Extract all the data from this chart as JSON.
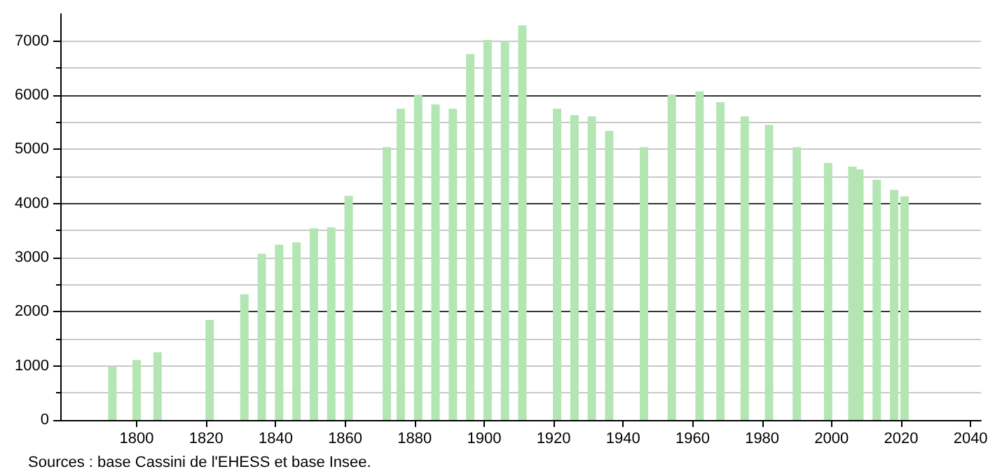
{
  "chart_data": {
    "type": "bar",
    "x": [
      1793,
      1800,
      1806,
      1821,
      1831,
      1836,
      1841,
      1846,
      1851,
      1856,
      1861,
      1872,
      1876,
      1881,
      1886,
      1891,
      1896,
      1901,
      1906,
      1911,
      1921,
      1926,
      1931,
      1936,
      1946,
      1954,
      1962,
      1968,
      1975,
      1982,
      1990,
      1999,
      2006,
      2008,
      2013,
      2018,
      2021
    ],
    "values": [
      990,
      1110,
      1250,
      1850,
      2320,
      3070,
      3240,
      3280,
      3540,
      3560,
      4140,
      5040,
      5750,
      6010,
      5830,
      5750,
      6760,
      7020,
      7000,
      7290,
      5750,
      5630,
      5610,
      5340,
      5040,
      6010,
      6070,
      5870,
      5610,
      5450,
      5040,
      4750,
      4680,
      4630,
      4440,
      4250,
      4130
    ],
    "color": "#b3e6b3",
    "xlim": [
      1778,
      2043
    ],
    "xticks": [
      1800,
      1820,
      1840,
      1860,
      1880,
      1900,
      1920,
      1940,
      1960,
      1980,
      2000,
      2020,
      2040
    ],
    "ylim": [
      0,
      7500
    ],
    "yticks": [
      0,
      1000,
      2000,
      3000,
      4000,
      5000,
      6000,
      7000
    ],
    "grid": "y",
    "annotations": [
      "Sources : base Cassini de l'EHESS et base Insee."
    ]
  }
}
